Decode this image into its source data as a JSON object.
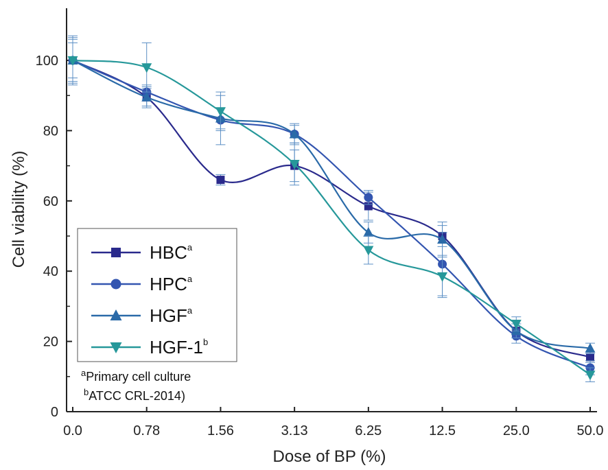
{
  "chart_data": {
    "type": "line",
    "title": "",
    "xlabel": "Dose of BP (%)",
    "ylabel": "Cell viability (%)",
    "categories": [
      "0.0",
      "0.78",
      "1.56",
      "3.13",
      "6.25",
      "12.5",
      "25.0",
      "50.0"
    ],
    "yticks": [
      "0",
      "20",
      "40",
      "60",
      "80",
      "100"
    ],
    "ylim": [
      0,
      115
    ],
    "grid": false,
    "legend_position": "bottom-left",
    "series": [
      {
        "name": "HBC",
        "superscript": "a",
        "marker": "square",
        "color": "#2a2a8c",
        "values": [
          100,
          89.5,
          66,
          70,
          58.5,
          50,
          23,
          15.5
        ],
        "errors": [
          6.5,
          2.5,
          1.5,
          4.5,
          4,
          3,
          2,
          1.5
        ]
      },
      {
        "name": "HPC",
        "superscript": "a",
        "marker": "circle",
        "color": "#3355b0",
        "values": [
          100,
          91,
          83,
          79,
          61,
          42,
          21.5,
          12.5
        ],
        "errors": [
          7,
          2,
          7,
          3,
          2,
          9,
          2,
          2
        ]
      },
      {
        "name": "HGF",
        "superscript": "a",
        "marker": "triangle-up",
        "color": "#2a6aa8",
        "values": [
          100,
          89.5,
          83.5,
          79,
          51,
          49,
          23,
          18
        ],
        "errors": [
          6,
          3,
          3,
          2.5,
          3,
          5,
          2,
          1.5
        ]
      },
      {
        "name": "HGF-1",
        "superscript": "b",
        "marker": "triangle-down",
        "color": "#26989a",
        "values": [
          100,
          98,
          85.5,
          70.5,
          46,
          38.5,
          25,
          10.5
        ],
        "errors": [
          5,
          7,
          5.5,
          6,
          4,
          6,
          2,
          2
        ]
      }
    ],
    "annotations": [
      {
        "superscript": "a",
        "text": "Primary cell culture"
      },
      {
        "superscript": "b",
        "text": "ATCC CRL-2014)"
      }
    ]
  }
}
